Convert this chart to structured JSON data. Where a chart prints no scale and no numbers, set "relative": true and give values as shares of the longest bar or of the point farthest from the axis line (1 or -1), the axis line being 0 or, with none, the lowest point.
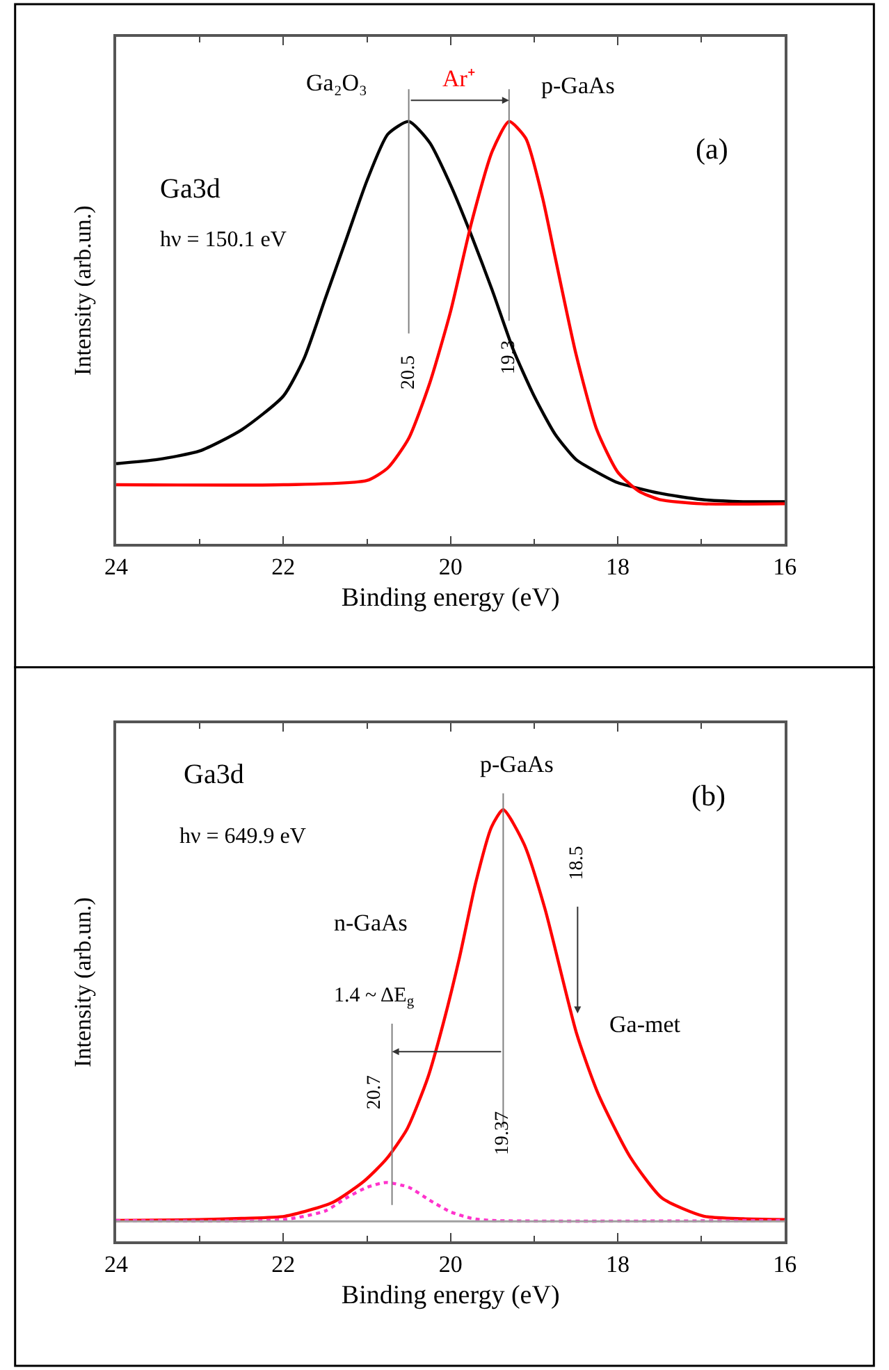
{
  "chart_data": [
    {
      "type": "line",
      "relative": true,
      "xlabel": "Binding energy (eV)",
      "ylabel": "Intensity (arb.un.)",
      "xlim": [
        24,
        16
      ],
      "xticks": [
        24,
        22,
        20,
        18,
        16
      ],
      "tick_labels": "x",
      "series": [
        {
          "color": "#000000",
          "x": [
            24,
            23.5,
            23,
            22.5,
            22,
            21.75,
            21.5,
            21.25,
            21,
            20.75,
            20.5,
            20.25,
            20,
            19.75,
            19.5,
            19.25,
            19,
            18.75,
            18.5,
            18.25,
            18,
            17.5,
            17,
            16.5,
            16
          ],
          "values": [
            0.19,
            0.2,
            0.22,
            0.27,
            0.35,
            0.44,
            0.58,
            0.72,
            0.86,
            0.97,
            1.0,
            0.95,
            0.85,
            0.73,
            0.6,
            0.46,
            0.35,
            0.26,
            0.2,
            0.17,
            0.145,
            0.12,
            0.105,
            0.1,
            0.1
          ]
        },
        {
          "name": "Ar⁺",
          "color": "#ff0000",
          "x": [
            24,
            22,
            21,
            20.75,
            20.5,
            20.25,
            20,
            19.75,
            19.5,
            19.3,
            19.1,
            18.9,
            18.75,
            18.5,
            18.25,
            18,
            17.75,
            17.5,
            17,
            16
          ],
          "values": [
            0.14,
            0.14,
            0.15,
            0.18,
            0.25,
            0.38,
            0.55,
            0.76,
            0.93,
            1.0,
            0.96,
            0.82,
            0.68,
            0.45,
            0.27,
            0.17,
            0.125,
            0.105,
            0.095,
            0.095
          ]
        }
      ],
      "ref_lines": [
        {
          "axis": "x",
          "value": 20.5,
          "label": "20.5",
          "color": "#808080"
        },
        {
          "axis": "x",
          "value": 19.3,
          "label": "19.3",
          "color": "#808080"
        }
      ],
      "annotations": [
        "Ga3d",
        "hν = 150.1 eV",
        "(a)",
        "Ga₂O₃",
        "p-GaAs"
      ]
    },
    {
      "type": "line",
      "relative": true,
      "xlabel": "Binding energy (eV)",
      "ylabel": "Intensity (arb.un.)",
      "xlim": [
        24,
        16
      ],
      "xticks": [
        24,
        22,
        20,
        18,
        16
      ],
      "tick_labels": "x",
      "series": [
        {
          "color": "#ff0000",
          "line_style": "solid",
          "x": [
            24,
            23,
            22.5,
            21.98,
            21.41,
            21.03,
            20.77,
            20.52,
            20.27,
            20.08,
            19.89,
            19.7,
            19.51,
            19.37,
            19.12,
            18.87,
            18.49,
            18.23,
            17.85,
            17.47,
            16.97,
            16.5,
            16
          ],
          "values": [
            0.048,
            0.05,
            0.053,
            0.058,
            0.09,
            0.14,
            0.19,
            0.26,
            0.38,
            0.51,
            0.66,
            0.83,
            0.96,
            1.0,
            0.92,
            0.77,
            0.48,
            0.34,
            0.195,
            0.1,
            0.058,
            0.052,
            0.05
          ]
        },
        {
          "color": "#ff33cc",
          "line_style": "dotted",
          "x": [
            24,
            22,
            21.5,
            21.25,
            21,
            20.77,
            20.5,
            20.25,
            20,
            19.75,
            19.5,
            16
          ],
          "values": [
            0.048,
            0.05,
            0.07,
            0.1,
            0.125,
            0.136,
            0.125,
            0.095,
            0.068,
            0.053,
            0.048,
            0.048
          ]
        }
      ],
      "ref_lines": [
        {
          "axis": "x",
          "value": 19.37,
          "label": "19.37",
          "color": "#808080"
        },
        {
          "axis": "x",
          "value": 20.7,
          "label": "20.7",
          "color": "#808080"
        },
        {
          "axis": "y",
          "value": 0.046,
          "color": "#a0a0a0"
        }
      ],
      "annotations": [
        "Ga3d",
        "hν = 649.9 eV",
        "(b)",
        "p-GaAs",
        "n-GaAs",
        "1.4 ~ ΔE$_{g}$",
        "18.5",
        "Ga-met"
      ]
    }
  ]
}
